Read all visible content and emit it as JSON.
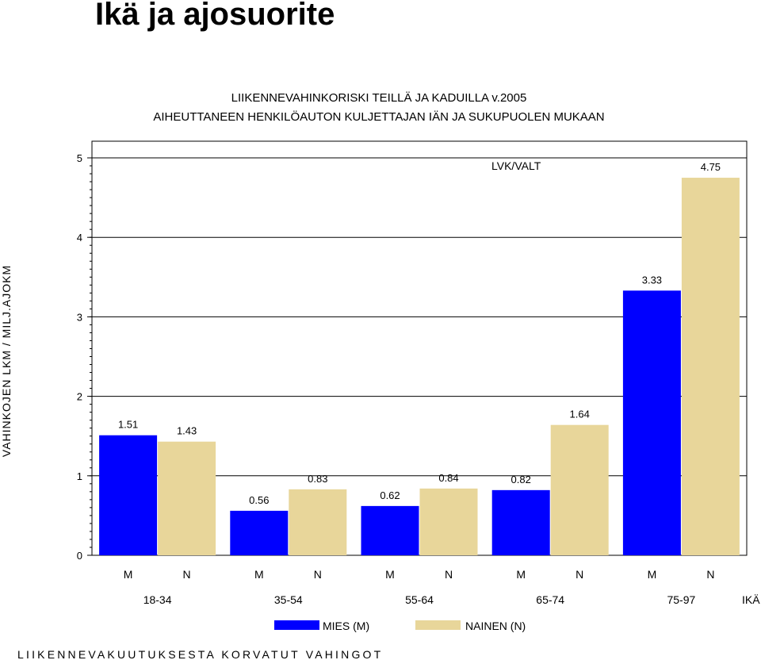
{
  "page": {
    "title": "Ikä ja ajosuorite"
  },
  "colors": {
    "male": "#0000ff",
    "female": "#e8d69a",
    "grid": "#000000"
  },
  "chart_data": {
    "type": "bar",
    "title": "LIIKENNEVAHINKORISKI TEILLÄ JA KADUILLA v.2005",
    "subtitle": "AIHEUTTANEEN HENKILÖAUTON KULJETTAJAN IÄN JA SUKUPUOLEN MUKAAN",
    "ylabel": "VAHINKOJEN LKM / MILJ.AJOKM",
    "xlabel": "IKÄ",
    "annotation": "LVK/VALT",
    "ylim": [
      0,
      5
    ],
    "yticks": [
      "0",
      "1",
      "2",
      "3",
      "4",
      "5"
    ],
    "grid": true,
    "legend_position": "bottom",
    "categories": [
      "18-34",
      "35-54",
      "55-64",
      "65-74",
      "75-97"
    ],
    "series": [
      {
        "name": "MIES (M)",
        "short": "M",
        "values": [
          1.51,
          0.56,
          0.62,
          0.82,
          3.33
        ],
        "labels": [
          "1.51",
          "0.56",
          "0.62",
          "0.82",
          "3.33"
        ]
      },
      {
        "name": "NAINEN (N)",
        "short": "N",
        "values": [
          1.43,
          0.83,
          0.84,
          1.64,
          4.75
        ],
        "labels": [
          "1.43",
          "0.83",
          "0.84",
          "1.64",
          "4.75"
        ]
      }
    ]
  },
  "footer": {
    "source": "LIIKENNEVAKUUTUKSESTA KORVATUT VAHINGOT"
  }
}
